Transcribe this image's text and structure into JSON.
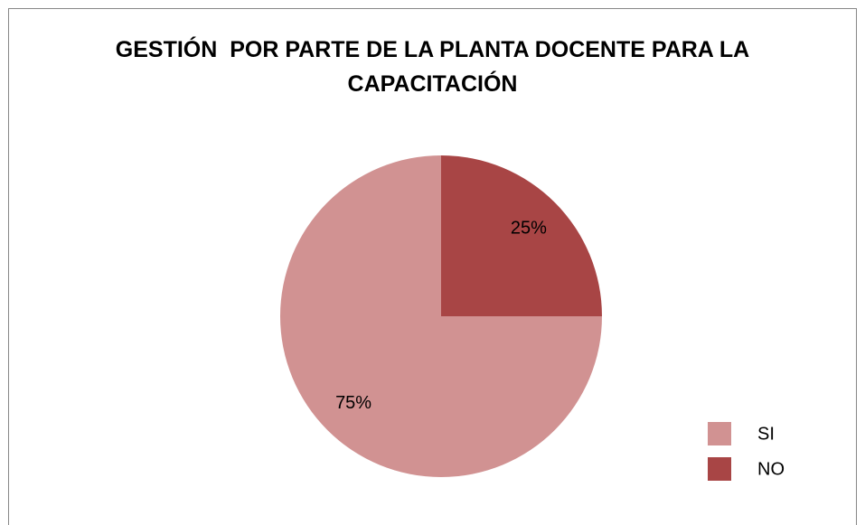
{
  "chart_data": {
    "type": "pie",
    "title": "GESTIÓN  POR PARTE DE LA PLANTA DOCENTE PARA LA CAPACITACIÓN",
    "categories": [
      "SI",
      "NO"
    ],
    "values": [
      75,
      25
    ],
    "value_labels": [
      "75%",
      "25%"
    ],
    "colors": [
      "#d19292",
      "#a84545"
    ],
    "legend": "right"
  }
}
